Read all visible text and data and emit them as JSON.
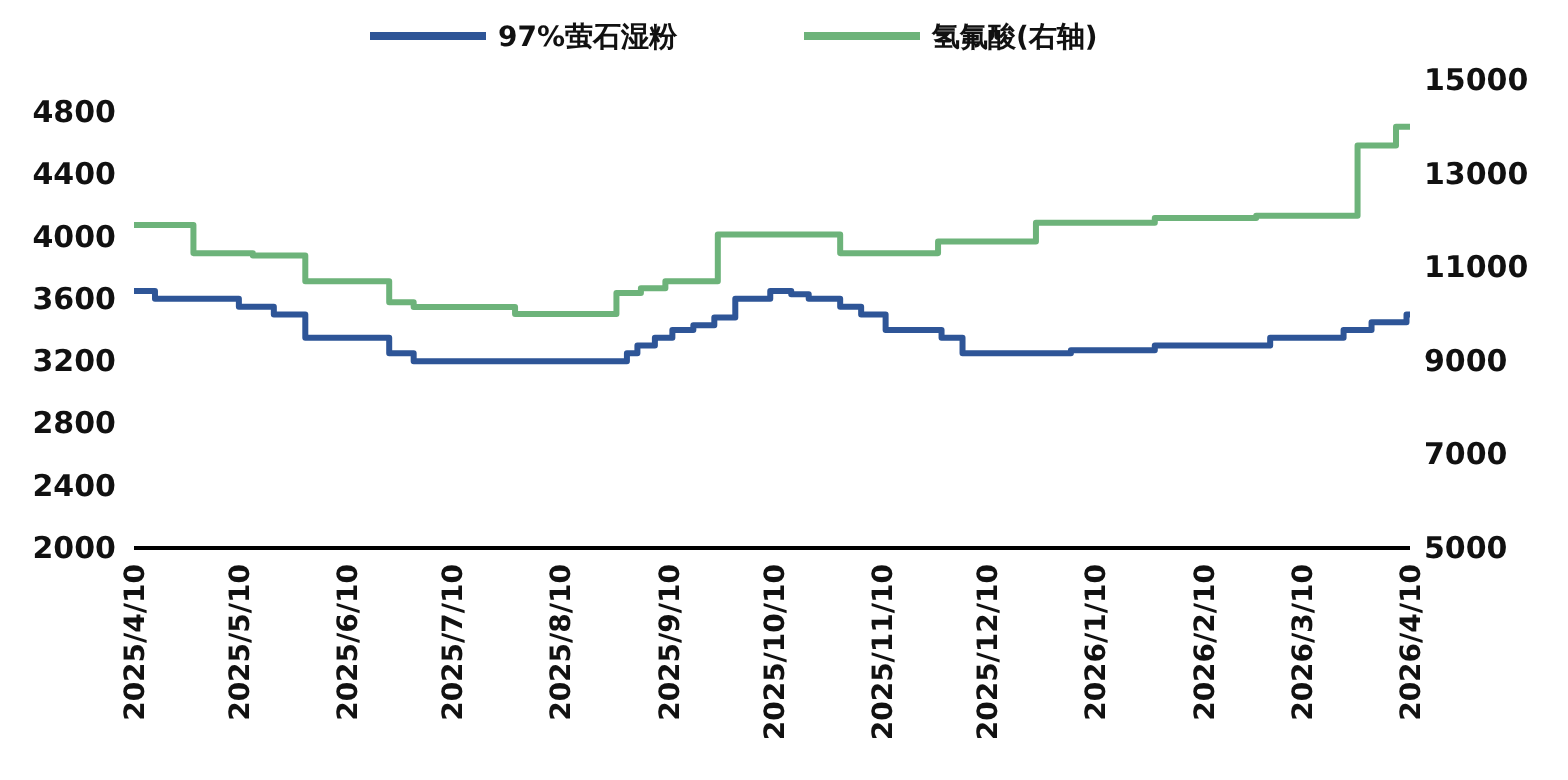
{
  "chart_data": {
    "type": "step",
    "legend": "top",
    "grid": false,
    "marker": "none",
    "line_style": "solid",
    "xlim": [
      "2025-04-10",
      "2026-04-10"
    ],
    "xticks": [
      {
        "value": "2025-04-10",
        "label": "2025/4/10"
      },
      {
        "value": "2025-05-10",
        "label": "2025/5/10"
      },
      {
        "value": "2025-06-10",
        "label": "2025/6/10"
      },
      {
        "value": "2025-07-10",
        "label": "2025/7/10"
      },
      {
        "value": "2025-08-10",
        "label": "2025/8/10"
      },
      {
        "value": "2025-09-10",
        "label": "2025/9/10"
      },
      {
        "value": "2025-10-10",
        "label": "2025/10/10"
      },
      {
        "value": "2025-11-10",
        "label": "2025/11/10"
      },
      {
        "value": "2025-12-10",
        "label": "2025/12/10"
      },
      {
        "value": "2026-01-10",
        "label": "2026/1/10"
      },
      {
        "value": "2026-02-10",
        "label": "2026/2/10"
      },
      {
        "value": "2026-03-10",
        "label": "2026/3/10"
      },
      {
        "value": "2026-04-10",
        "label": "2026/4/10"
      }
    ],
    "ylim": [
      2000,
      4800
    ],
    "yticks": [
      2000,
      2400,
      2800,
      3200,
      3600,
      4000,
      4400,
      4800
    ],
    "y2lim": [
      5000,
      15000
    ],
    "y2ticks": [
      5000,
      7000,
      9000,
      11000,
      13000,
      15000
    ],
    "series": [
      {
        "name": "97%萤石湿粉",
        "color": "#2e5597",
        "x": [
          "2025-04-10",
          "2025-04-16",
          "2025-05-10",
          "2025-05-20",
          "2025-05-29",
          "2025-06-22",
          "2025-06-29",
          "2025-08-29",
          "2025-09-01",
          "2025-09-06",
          "2025-09-11",
          "2025-09-17",
          "2025-09-23",
          "2025-09-29",
          "2025-10-09",
          "2025-10-15",
          "2025-10-20",
          "2025-10-29",
          "2025-11-04",
          "2025-11-11",
          "2025-11-27",
          "2025-12-03",
          "2026-01-03",
          "2026-01-27",
          "2026-03-01",
          "2026-03-22",
          "2026-03-30",
          "2026-04-09",
          "2026-04-10"
        ],
        "values": [
          3650,
          3600,
          3550,
          3500,
          3350,
          3250,
          3200,
          3250,
          3300,
          3350,
          3400,
          3430,
          3480,
          3600,
          3650,
          3630,
          3600,
          3550,
          3500,
          3400,
          3350,
          3250,
          3270,
          3300,
          3350,
          3400,
          3450,
          3500,
          3500
        ]
      },
      {
        "name": "氢氟酸(右轴)",
        "color": "#6db37a",
        "axis": "y2",
        "x": [
          "2025-04-10",
          "2025-04-27",
          "2025-05-14",
          "2025-05-29",
          "2025-06-22",
          "2025-06-29",
          "2025-07-28",
          "2025-08-26",
          "2025-09-02",
          "2025-09-09",
          "2025-09-24",
          "2025-10-29",
          "2025-11-26",
          "2025-12-24",
          "2026-01-27",
          "2026-02-25",
          "2026-03-26",
          "2026-04-06",
          "2026-04-10"
        ],
        "values": [
          11900,
          11300,
          11250,
          10700,
          10250,
          10150,
          10000,
          10450,
          10550,
          10700,
          11700,
          11300,
          11550,
          11950,
          12050,
          12100,
          13600,
          14000,
          14000
        ]
      }
    ]
  }
}
